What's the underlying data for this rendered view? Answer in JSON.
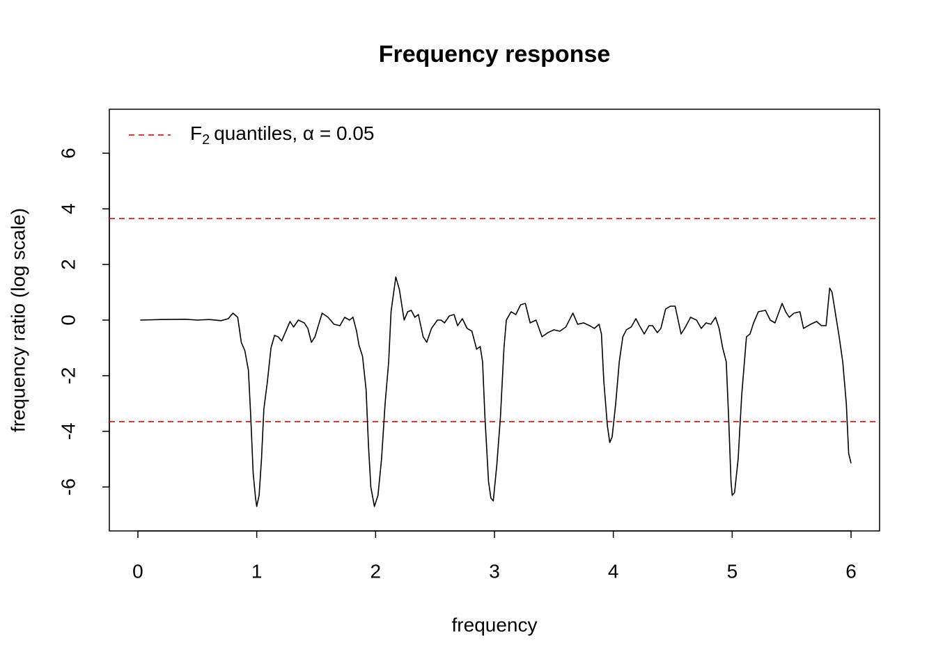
{
  "chart_data": {
    "type": "line",
    "title": "Frequency response",
    "xlabel": "frequency",
    "ylabel": "frequency ratio (log scale)",
    "xlim": [
      -0.24,
      6.24
    ],
    "ylim": [
      -7.58,
      7.58
    ],
    "xticks": [
      0,
      1,
      2,
      3,
      4,
      5,
      6
    ],
    "yticks": [
      -6,
      -4,
      -2,
      0,
      2,
      4,
      6
    ],
    "threshold": {
      "label": [
        "F",
        "2",
        "quantiles,  α = 0.05"
      ],
      "values": [
        3.65,
        -3.65
      ],
      "color": "#e41a1c",
      "dashed": true
    },
    "legend": "topleft",
    "x": [
      0.02,
      0.2,
      0.4,
      0.5,
      0.6,
      0.7,
      0.76,
      0.8,
      0.84,
      0.87,
      0.9,
      0.93,
      0.95,
      0.97,
      0.99,
      1.0,
      1.02,
      1.04,
      1.06,
      1.09,
      1.12,
      1.15,
      1.18,
      1.21,
      1.25,
      1.28,
      1.31,
      1.35,
      1.4,
      1.43,
      1.46,
      1.49,
      1.55,
      1.6,
      1.65,
      1.7,
      1.74,
      1.78,
      1.81,
      1.84,
      1.86,
      1.89,
      1.92,
      1.94,
      1.96,
      1.99,
      2.02,
      2.05,
      2.08,
      2.11,
      2.13,
      2.17,
      2.2,
      2.24,
      2.27,
      2.3,
      2.33,
      2.36,
      2.4,
      2.43,
      2.47,
      2.52,
      2.55,
      2.58,
      2.62,
      2.66,
      2.69,
      2.73,
      2.77,
      2.81,
      2.85,
      2.88,
      2.9,
      2.92,
      2.95,
      2.97,
      2.99,
      3.02,
      3.05,
      3.08,
      3.1,
      3.14,
      3.18,
      3.22,
      3.26,
      3.3,
      3.35,
      3.4,
      3.45,
      3.5,
      3.55,
      3.6,
      3.66,
      3.7,
      3.75,
      3.8,
      3.84,
      3.88,
      3.9,
      3.92,
      3.95,
      3.97,
      3.99,
      4.02,
      4.05,
      4.08,
      4.11,
      4.15,
      4.19,
      4.22,
      4.26,
      4.3,
      4.33,
      4.37,
      4.4,
      4.44,
      4.48,
      4.52,
      4.57,
      4.6,
      4.65,
      4.7,
      4.74,
      4.78,
      4.82,
      4.86,
      4.89,
      4.92,
      4.95,
      4.97,
      4.99,
      5.0,
      5.02,
      5.05,
      5.08,
      5.12,
      5.15,
      5.18,
      5.22,
      5.28,
      5.32,
      5.36,
      5.42,
      5.45,
      5.48,
      5.52,
      5.57,
      5.6,
      5.66,
      5.71,
      5.75,
      5.79,
      5.82,
      5.84,
      5.87,
      5.9,
      5.93,
      5.96,
      5.98,
      6.0
    ],
    "series": [
      {
        "color": "#000000",
        "values": [
          0,
          0.02,
          0.03,
          0.0,
          0.02,
          -0.02,
          0.05,
          0.25,
          0.1,
          -0.8,
          -1.1,
          -1.8,
          -3.5,
          -5.5,
          -6.4,
          -6.7,
          -6.3,
          -5,
          -3.2,
          -2.2,
          -1.0,
          -0.55,
          -0.6,
          -0.75,
          -0.35,
          -0.05,
          -0.25,
          0.0,
          -0.1,
          -0.3,
          -0.8,
          -0.6,
          0.25,
          0.1,
          -0.15,
          -0.2,
          0.1,
          0.0,
          0.1,
          -0.4,
          -0.9,
          -1.3,
          -2.5,
          -4.5,
          -6.0,
          -6.7,
          -6.3,
          -5.0,
          -3.0,
          -1.5,
          0.3,
          1.55,
          1.1,
          0.0,
          0.3,
          0.35,
          0.1,
          0.2,
          -0.6,
          -0.8,
          -0.3,
          0.0,
          0.0,
          -0.1,
          0.15,
          0.2,
          -0.2,
          0.05,
          -0.3,
          -0.4,
          -1.05,
          -0.95,
          -1.5,
          -3.5,
          -5.8,
          -6.4,
          -6.5,
          -5.2,
          -3.5,
          -1.0,
          0.0,
          0.3,
          0.2,
          0.55,
          0.6,
          -0.1,
          0.0,
          -0.6,
          -0.45,
          -0.35,
          -0.4,
          -0.25,
          0.25,
          -0.15,
          -0.1,
          -0.2,
          -0.3,
          -0.15,
          -0.5,
          -2.2,
          -3.8,
          -4.4,
          -4.2,
          -3,
          -1.5,
          -0.6,
          -0.35,
          -0.25,
          0.05,
          -0.2,
          -0.5,
          -0.2,
          -0.2,
          -0.45,
          -0.3,
          0.4,
          0.5,
          0.5,
          -0.5,
          -0.3,
          0.1,
          0.0,
          -0.3,
          -0.1,
          -0.15,
          0.1,
          -0.3,
          -1.0,
          -1.5,
          -3.5,
          -5.8,
          -6.3,
          -6.2,
          -5.0,
          -2.7,
          -0.6,
          -0.5,
          -0.1,
          0.3,
          0.35,
          0.0,
          -0.1,
          0.6,
          0.3,
          0.1,
          0.25,
          0.3,
          -0.3,
          -0.15,
          -0.05,
          -0.2,
          -0.2,
          1.15,
          1.0,
          0.2,
          -0.6,
          -1.5,
          -3.0,
          -4.8,
          -5.15
        ]
      }
    ]
  }
}
